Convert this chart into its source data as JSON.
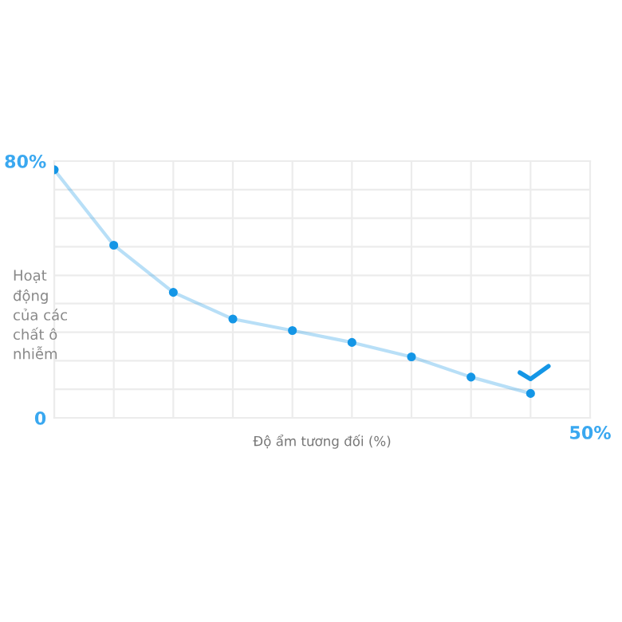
{
  "chart_data": {
    "type": "line",
    "xlabel": "Độ ẩm tương đối (%)",
    "ylabel": "Hoạt\nđộng\ncủa các\nchất ô\nnhiễm",
    "categories": [
      null,
      null,
      null,
      null,
      null,
      null,
      null,
      null,
      null
    ],
    "series": [
      {
        "color": "#1496e6",
        "values": [
          77.3,
          53.8,
          39.1,
          30.8,
          27.2,
          23.5,
          19.0,
          12.7,
          7.6
        ]
      }
    ],
    "ylim": [
      0,
      80
    ],
    "yticks": [
      0,
      {
        "value": 8.9,
        "label": null
      },
      {
        "value": 17.8,
        "label": null
      },
      {
        "value": 26.7,
        "label": null
      },
      {
        "value": 35.6,
        "label": null
      },
      {
        "value": 44.4,
        "label": null
      },
      {
        "value": 53.3,
        "label": null
      },
      {
        "value": 62.2,
        "label": null
      },
      {
        "value": 71.1,
        "label": null
      },
      {
        "value": 80,
        "label": "80%"
      }
    ],
    "annotations": [
      "50%"
    ],
    "grid": true,
    "marker": "circle",
    "line_style": "solid"
  }
}
